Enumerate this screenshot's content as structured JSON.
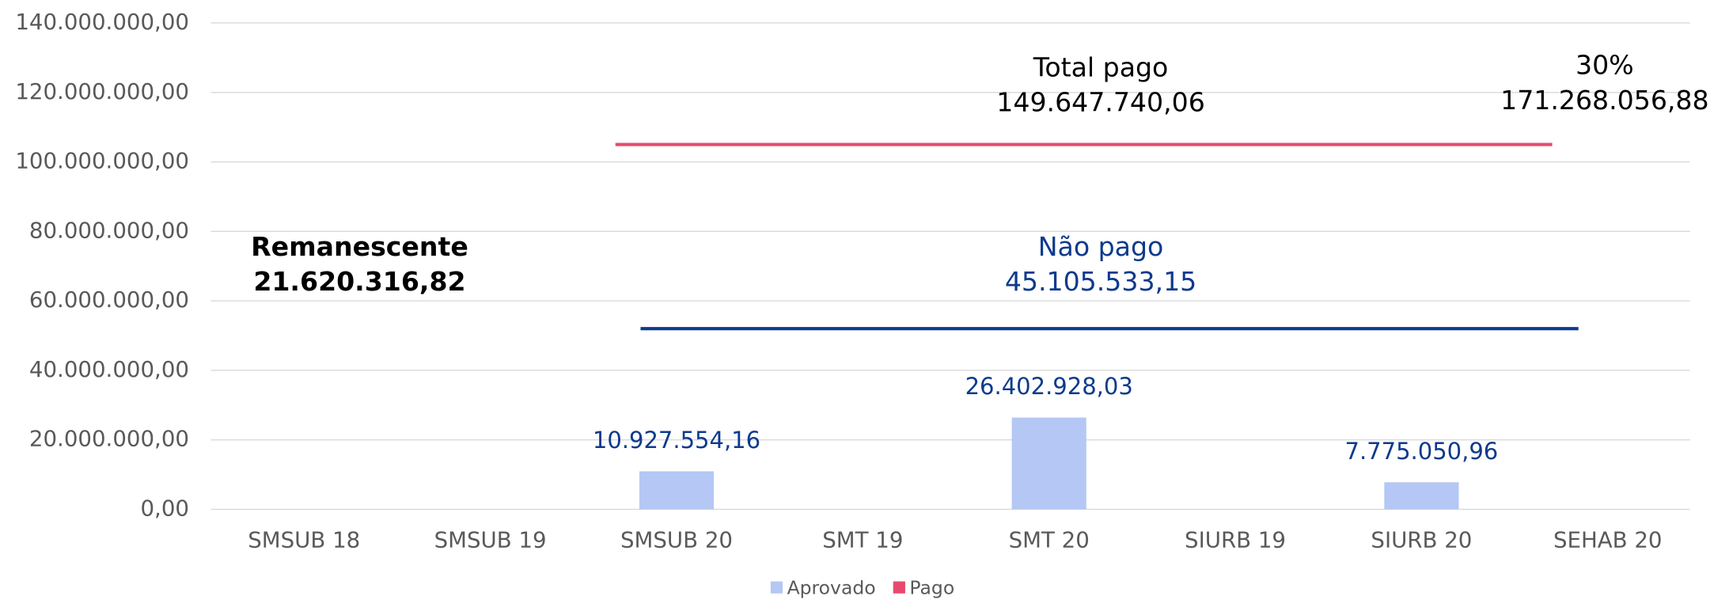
{
  "chart_data": {
    "type": "bar",
    "categories": [
      "SMSUB 18",
      "SMSUB 19",
      "SMSUB 20",
      "SMT 19",
      "SMT 20",
      "SIURB 19",
      "SIURB 20",
      "SEHAB 20"
    ],
    "series": [
      {
        "name": "Aprovado",
        "color": "#b4c7f5",
        "values": [
          null,
          null,
          10927554.16,
          null,
          26402928.03,
          null,
          7775050.96,
          null
        ],
        "value_labels": [
          null,
          null,
          "10.927.554,16",
          null,
          "26.402.928,03",
          null,
          "7.775.050,96",
          null
        ]
      },
      {
        "name": "Pago",
        "color": "#e8496e",
        "values": [
          null,
          null,
          null,
          null,
          null,
          null,
          null,
          null
        ]
      }
    ],
    "ylim": [
      0,
      140000000
    ],
    "yticks": [
      {
        "value": 0,
        "label": "0,00"
      },
      {
        "value": 20000000,
        "label": "20.000.000,00"
      },
      {
        "value": 40000000,
        "label": "40.000.000,00"
      },
      {
        "value": 60000000,
        "label": "60.000.000,00"
      },
      {
        "value": 80000000,
        "label": "80.000.000,00"
      },
      {
        "value": 100000000,
        "label": "100.000.000,00"
      },
      {
        "value": 120000000,
        "label": "120.000.000,00"
      },
      {
        "value": 140000000,
        "label": "140.000.000,00"
      }
    ],
    "grid": true,
    "legend": "bottom",
    "reference_lines": [
      {
        "value": 105000000,
        "color": "#e8496e"
      },
      {
        "value": 52000000,
        "color": "#0d3a8c"
      }
    ],
    "annotations": [
      {
        "lines": [
          "Total pago",
          "149.647.740,06"
        ],
        "color": "#000000",
        "bold": false
      },
      {
        "lines": [
          "30%",
          "171.268.056,88"
        ],
        "color": "#000000",
        "bold": false
      },
      {
        "lines": [
          "Não pago",
          "45.105.533,15"
        ],
        "color": "#0d3a8c",
        "bold": false
      },
      {
        "lines": [
          "Remanescente",
          "21.620.316,82"
        ],
        "color": "#000000",
        "bold": true
      }
    ]
  }
}
